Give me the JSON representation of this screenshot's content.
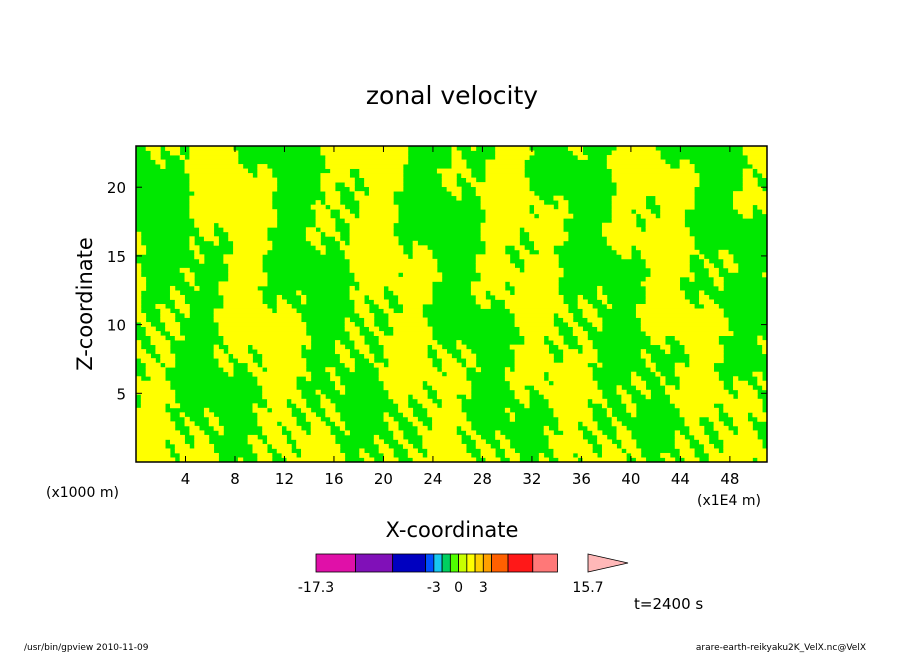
{
  "chart_data": {
    "type": "heatmap",
    "title": "zonal velocity",
    "xlabel": "X-coordinate",
    "ylabel": "Z-coordinate",
    "x_unit": "(x1E4 m)",
    "y_unit": "(x1000 m)",
    "xlim": [
      0,
      51
    ],
    "ylim": [
      0,
      23
    ],
    "x_ticks": [
      4,
      8,
      12,
      16,
      20,
      24,
      28,
      32,
      36,
      40,
      44,
      48
    ],
    "y_ticks": [
      5,
      10,
      15,
      20
    ],
    "colorbar": {
      "min_label": "-17.3",
      "max_label": "15.7",
      "tick_labels": [
        "-3",
        "0",
        "3"
      ],
      "levels": [
        -17.3,
        -12.5,
        -8,
        -4,
        -3,
        -2,
        -1,
        0,
        1,
        2,
        3,
        4,
        6,
        9,
        12,
        15.7
      ],
      "colors": [
        "#e010a8",
        "#8010b8",
        "#0000c0",
        "#0050ff",
        "#18c8f0",
        "#00d060",
        "#50ff00",
        "#c8ff00",
        "#ffff00",
        "#ffd000",
        "#ffa000",
        "#ff6000",
        "#ff1818",
        "#ff7878",
        "#ffb8b8"
      ]
    },
    "field_colors": {
      "positive": "#ffff00",
      "negative": "#00e800"
    },
    "time_label": "t=2400 s"
  },
  "footer": {
    "left": "/usr/bin/gpview  2010-11-09",
    "right": "arare-earth-reikyaku2K_VelX.nc@VelX"
  }
}
